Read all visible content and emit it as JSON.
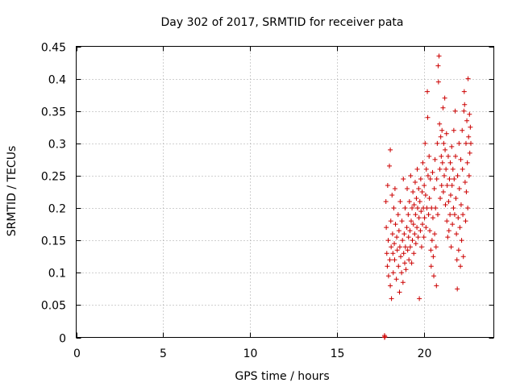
{
  "chart_data": {
    "type": "scatter",
    "title": "Day 302 of 2017, SRMTID for receiver pata",
    "xlabel": "GPS time / hours",
    "ylabel": "SRMTID / TECUs",
    "xlim": [
      0,
      24
    ],
    "ylim": [
      0,
      0.45
    ],
    "xticks": [
      0,
      5,
      10,
      15,
      20
    ],
    "xtick_labels": [
      "0",
      "5",
      "10",
      "15",
      "20"
    ],
    "yticks": [
      0,
      0.05,
      0.1,
      0.15,
      0.2,
      0.25,
      0.3,
      0.35,
      0.4,
      0.45
    ],
    "ytick_labels": [
      "0",
      "0.05",
      "0.1",
      "0.15",
      "0.2",
      "0.25",
      "0.3",
      "0.35",
      "0.4",
      "0.45"
    ],
    "grid": true,
    "marker": "+",
    "series_color": "#cc0000",
    "series": [
      {
        "name": "SRMTID",
        "points": [
          [
            17.72,
            0.0
          ],
          [
            17.72,
            0.003
          ],
          [
            17.74,
            0.001
          ],
          [
            17.8,
            0.21
          ],
          [
            17.82,
            0.17
          ],
          [
            17.85,
            0.13
          ],
          [
            17.88,
            0.11
          ],
          [
            17.9,
            0.235
          ],
          [
            17.93,
            0.15
          ],
          [
            17.95,
            0.095
          ],
          [
            18.0,
            0.265
          ],
          [
            18.02,
            0.12
          ],
          [
            18.05,
            0.08
          ],
          [
            18.05,
            0.29
          ],
          [
            18.08,
            0.18
          ],
          [
            18.1,
            0.14
          ],
          [
            18.12,
            0.06
          ],
          [
            18.15,
            0.22
          ],
          [
            18.18,
            0.16
          ],
          [
            18.2,
            0.13
          ],
          [
            18.22,
            0.1
          ],
          [
            18.25,
            0.2
          ],
          [
            18.28,
            0.145
          ],
          [
            18.3,
            0.12
          ],
          [
            18.32,
            0.23
          ],
          [
            18.35,
            0.175
          ],
          [
            18.4,
            0.09
          ],
          [
            18.42,
            0.155
          ],
          [
            18.45,
            0.135
          ],
          [
            18.5,
            0.19
          ],
          [
            18.52,
            0.11
          ],
          [
            18.55,
            0.165
          ],
          [
            18.58,
            0.07
          ],
          [
            18.6,
            0.14
          ],
          [
            18.62,
            0.21
          ],
          [
            18.65,
            0.125
          ],
          [
            18.7,
            0.1
          ],
          [
            18.72,
            0.18
          ],
          [
            18.75,
            0.15
          ],
          [
            18.78,
            0.085
          ],
          [
            18.8,
            0.245
          ],
          [
            18.82,
            0.13
          ],
          [
            18.85,
            0.16
          ],
          [
            18.88,
            0.115
          ],
          [
            18.9,
            0.2
          ],
          [
            18.92,
            0.14
          ],
          [
            18.95,
            0.105
          ],
          [
            19.0,
            0.17
          ],
          [
            19.02,
            0.23
          ],
          [
            19.05,
            0.135
          ],
          [
            19.08,
            0.19
          ],
          [
            19.1,
            0.155
          ],
          [
            19.12,
            0.12
          ],
          [
            19.15,
            0.21
          ],
          [
            19.18,
            0.165
          ],
          [
            19.2,
            0.14
          ],
          [
            19.22,
            0.25
          ],
          [
            19.25,
            0.18
          ],
          [
            19.28,
            0.115
          ],
          [
            19.3,
            0.2
          ],
          [
            19.32,
            0.15
          ],
          [
            19.35,
            0.225
          ],
          [
            19.38,
            0.175
          ],
          [
            19.4,
            0.13
          ],
          [
            19.42,
            0.205
          ],
          [
            19.45,
            0.16
          ],
          [
            19.48,
            0.24
          ],
          [
            19.5,
            0.19
          ],
          [
            19.52,
            0.145
          ],
          [
            19.55,
            0.215
          ],
          [
            19.58,
            0.17
          ],
          [
            19.6,
            0.26
          ],
          [
            19.62,
            0.2
          ],
          [
            19.65,
            0.155
          ],
          [
            19.68,
            0.23
          ],
          [
            19.7,
            0.185
          ],
          [
            19.72,
            0.06
          ],
          [
            19.75,
            0.21
          ],
          [
            19.78,
            0.165
          ],
          [
            19.8,
            0.245
          ],
          [
            19.82,
            0.195
          ],
          [
            19.85,
            0.14
          ],
          [
            19.88,
            0.225
          ],
          [
            19.9,
            0.175
          ],
          [
            19.92,
            0.27
          ],
          [
            19.95,
            0.2
          ],
          [
            19.98,
            0.155
          ],
          [
            20.0,
            0.235
          ],
          [
            20.02,
            0.185
          ],
          [
            20.05,
            0.3
          ],
          [
            20.08,
            0.22
          ],
          [
            20.1,
            0.17
          ],
          [
            20.12,
            0.26
          ],
          [
            20.15,
            0.2
          ],
          [
            20.18,
            0.38
          ],
          [
            20.2,
            0.34
          ],
          [
            20.22,
            0.25
          ],
          [
            20.25,
            0.19
          ],
          [
            20.28,
            0.28
          ],
          [
            20.3,
            0.215
          ],
          [
            20.32,
            0.165
          ],
          [
            20.35,
            0.245
          ],
          [
            20.38,
            0.135
          ],
          [
            20.4,
            0.11
          ],
          [
            20.42,
            0.2
          ],
          [
            20.45,
            0.15
          ],
          [
            20.48,
            0.255
          ],
          [
            20.5,
            0.185
          ],
          [
            20.52,
            0.125
          ],
          [
            20.55,
            0.095
          ],
          [
            20.58,
            0.23
          ],
          [
            20.6,
            0.16
          ],
          [
            20.62,
            0.275
          ],
          [
            20.65,
            0.2
          ],
          [
            20.68,
            0.14
          ],
          [
            20.7,
            0.08
          ],
          [
            20.72,
            0.245
          ],
          [
            20.75,
            0.3
          ],
          [
            20.78,
            0.19
          ],
          [
            20.8,
            0.42
          ],
          [
            20.82,
            0.395
          ],
          [
            20.85,
            0.435
          ],
          [
            20.88,
            0.33
          ],
          [
            20.9,
            0.26
          ],
          [
            20.92,
            0.215
          ],
          [
            20.95,
            0.31
          ],
          [
            20.98,
            0.28
          ],
          [
            21.0,
            0.235
          ],
          [
            21.02,
            0.32
          ],
          [
            21.05,
            0.27
          ],
          [
            21.08,
            0.355
          ],
          [
            21.1,
            0.225
          ],
          [
            21.12,
            0.3
          ],
          [
            21.15,
            0.25
          ],
          [
            21.18,
            0.37
          ],
          [
            21.2,
            0.29
          ],
          [
            21.22,
            0.205
          ],
          [
            21.25,
            0.26
          ],
          [
            21.28,
            0.315
          ],
          [
            21.3,
            0.18
          ],
          [
            21.32,
            0.235
          ],
          [
            21.35,
            0.155
          ],
          [
            21.38,
            0.28
          ],
          [
            21.4,
            0.21
          ],
          [
            21.42,
            0.165
          ],
          [
            21.45,
            0.245
          ],
          [
            21.48,
            0.19
          ],
          [
            21.5,
            0.27
          ],
          [
            21.52,
            0.22
          ],
          [
            21.55,
            0.14
          ],
          [
            21.58,
            0.295
          ],
          [
            21.6,
            0.235
          ],
          [
            21.62,
            0.175
          ],
          [
            21.65,
            0.26
          ],
          [
            21.68,
            0.2
          ],
          [
            21.7,
            0.32
          ],
          [
            21.72,
            0.245
          ],
          [
            21.75,
            0.19
          ],
          [
            21.78,
            0.35
          ],
          [
            21.8,
            0.28
          ],
          [
            21.82,
            0.215
          ],
          [
            21.85,
            0.16
          ],
          [
            21.88,
            0.12
          ],
          [
            21.9,
            0.075
          ],
          [
            21.92,
            0.25
          ],
          [
            21.95,
            0.185
          ],
          [
            21.98,
            0.135
          ],
          [
            22.0,
            0.3
          ],
          [
            22.02,
            0.23
          ],
          [
            22.05,
            0.17
          ],
          [
            22.08,
            0.11
          ],
          [
            22.1,
            0.275
          ],
          [
            22.12,
            0.205
          ],
          [
            22.15,
            0.15
          ],
          [
            22.18,
            0.32
          ],
          [
            22.2,
            0.26
          ],
          [
            22.22,
            0.19
          ],
          [
            22.25,
            0.125
          ],
          [
            22.28,
            0.35
          ],
          [
            22.3,
            0.38
          ],
          [
            22.32,
            0.36
          ],
          [
            22.35,
            0.24
          ],
          [
            22.38,
            0.18
          ],
          [
            22.4,
            0.3
          ],
          [
            22.42,
            0.225
          ],
          [
            22.45,
            0.335
          ],
          [
            22.48,
            0.27
          ],
          [
            22.5,
            0.2
          ],
          [
            22.52,
            0.4
          ],
          [
            22.55,
            0.31
          ],
          [
            22.58,
            0.25
          ],
          [
            22.6,
            0.345
          ],
          [
            22.62,
            0.285
          ],
          [
            22.65,
            0.325
          ],
          [
            22.68,
            0.3
          ]
        ]
      }
    ]
  }
}
